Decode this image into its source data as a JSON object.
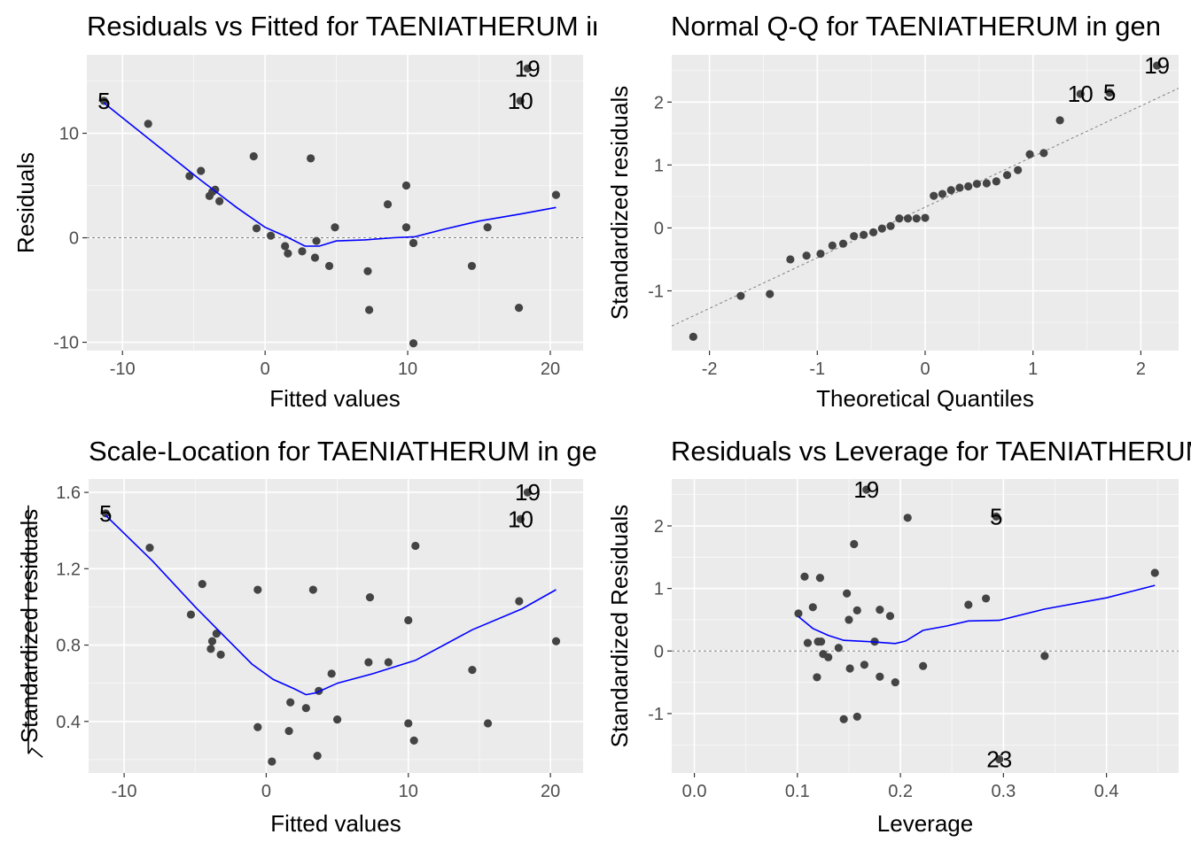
{
  "chart_data": [
    {
      "type": "scatter",
      "title": "Residuals vs Fitted for TAENIATHERUM in gen",
      "xlabel": "Fitted values",
      "ylabel": "Residuals",
      "xlim": [
        -12.5,
        22.3
      ],
      "ylim": [
        -10.8,
        17.5
      ],
      "xticks": [
        -10,
        0,
        10,
        20
      ],
      "yticks": [
        -10,
        0,
        10
      ],
      "reference_line": {
        "type": "horizontal",
        "value": 0,
        "style": "dashed"
      },
      "points": [
        {
          "x": -11.3,
          "y": 13.1
        },
        {
          "x": -8.2,
          "y": 10.9
        },
        {
          "x": -5.3,
          "y": 5.9
        },
        {
          "x": -4.5,
          "y": 6.4
        },
        {
          "x": -3.9,
          "y": 4.0
        },
        {
          "x": -3.7,
          "y": 4.4
        },
        {
          "x": -3.5,
          "y": 4.6
        },
        {
          "x": -3.2,
          "y": 3.5
        },
        {
          "x": -0.8,
          "y": 7.8
        },
        {
          "x": -0.6,
          "y": 0.9
        },
        {
          "x": 0.4,
          "y": 0.2
        },
        {
          "x": 1.4,
          "y": -0.8
        },
        {
          "x": 1.6,
          "y": -1.5
        },
        {
          "x": 2.6,
          "y": -1.3
        },
        {
          "x": 3.2,
          "y": 7.6
        },
        {
          "x": 3.5,
          "y": -1.9
        },
        {
          "x": 3.6,
          "y": -0.3
        },
        {
          "x": 4.5,
          "y": -2.7
        },
        {
          "x": 4.9,
          "y": 1.0
        },
        {
          "x": 7.2,
          "y": -3.2
        },
        {
          "x": 7.3,
          "y": -6.9
        },
        {
          "x": 8.6,
          "y": 3.2
        },
        {
          "x": 9.9,
          "y": 5.0
        },
        {
          "x": 9.9,
          "y": 1.0
        },
        {
          "x": 10.4,
          "y": -0.5
        },
        {
          "x": 10.4,
          "y": -10.1
        },
        {
          "x": 14.5,
          "y": -2.7
        },
        {
          "x": 15.6,
          "y": 1.0
        },
        {
          "x": 17.8,
          "y": -6.7
        },
        {
          "x": 17.9,
          "y": 13.1
        },
        {
          "x": 18.4,
          "y": 16.2
        },
        {
          "x": 20.4,
          "y": 4.1
        }
      ],
      "smooth": [
        {
          "x": -11.3,
          "y": 12.9
        },
        {
          "x": -8.0,
          "y": 9.3
        },
        {
          "x": -4.5,
          "y": 5.5
        },
        {
          "x": -2.0,
          "y": 2.9
        },
        {
          "x": 0.0,
          "y": 1.0
        },
        {
          "x": 1.5,
          "y": 0.1
        },
        {
          "x": 2.8,
          "y": -0.8
        },
        {
          "x": 3.8,
          "y": -0.8
        },
        {
          "x": 5.0,
          "y": -0.3
        },
        {
          "x": 7.0,
          "y": -0.2
        },
        {
          "x": 9.0,
          "y": 0.0
        },
        {
          "x": 10.5,
          "y": 0.1
        },
        {
          "x": 12.5,
          "y": 0.8
        },
        {
          "x": 15.0,
          "y": 1.6
        },
        {
          "x": 18.0,
          "y": 2.3
        },
        {
          "x": 20.4,
          "y": 2.9
        }
      ],
      "point_labels": [
        {
          "text": "5",
          "x": -11.3,
          "y": 13.1
        },
        {
          "text": "19",
          "x": 18.4,
          "y": 16.2
        },
        {
          "text": "10",
          "x": 17.9,
          "y": 13.1
        }
      ]
    },
    {
      "type": "scatter",
      "title": "Normal Q-Q for TAENIATHERUM in gen",
      "xlabel": "Theoretical Quantiles",
      "ylabel": "Standardized residuals",
      "xlim": [
        -2.35,
        2.35
      ],
      "ylim": [
        -1.95,
        2.75
      ],
      "xticks": [
        -2,
        -1,
        0,
        1,
        2
      ],
      "yticks": [
        -1,
        0,
        1,
        2
      ],
      "reference_line": {
        "type": "qq",
        "x1": -2.35,
        "y1": -1.56,
        "x2": 2.35,
        "y2": 2.22,
        "style": "dashed"
      },
      "points": [
        {
          "x": -2.15,
          "y": -1.73
        },
        {
          "x": -1.71,
          "y": -1.08
        },
        {
          "x": -1.44,
          "y": -1.05
        },
        {
          "x": -1.25,
          "y": -0.5
        },
        {
          "x": -1.1,
          "y": -0.44
        },
        {
          "x": -0.97,
          "y": -0.41
        },
        {
          "x": -0.86,
          "y": -0.28
        },
        {
          "x": -0.76,
          "y": -0.25
        },
        {
          "x": -0.66,
          "y": -0.13
        },
        {
          "x": -0.57,
          "y": -0.11
        },
        {
          "x": -0.48,
          "y": -0.07
        },
        {
          "x": -0.4,
          "y": -0.01
        },
        {
          "x": -0.32,
          "y": 0.03
        },
        {
          "x": -0.24,
          "y": 0.15
        },
        {
          "x": -0.16,
          "y": 0.15
        },
        {
          "x": -0.08,
          "y": 0.15
        },
        {
          "x": 0.0,
          "y": 0.16
        },
        {
          "x": 0.08,
          "y": 0.51
        },
        {
          "x": 0.16,
          "y": 0.54
        },
        {
          "x": 0.24,
          "y": 0.6
        },
        {
          "x": 0.32,
          "y": 0.64
        },
        {
          "x": 0.4,
          "y": 0.66
        },
        {
          "x": 0.48,
          "y": 0.7
        },
        {
          "x": 0.57,
          "y": 0.71
        },
        {
          "x": 0.66,
          "y": 0.74
        },
        {
          "x": 0.76,
          "y": 0.84
        },
        {
          "x": 0.86,
          "y": 0.92
        },
        {
          "x": 0.97,
          "y": 1.17
        },
        {
          "x": 1.1,
          "y": 1.19
        },
        {
          "x": 1.25,
          "y": 1.71
        },
        {
          "x": 1.44,
          "y": 2.13
        },
        {
          "x": 1.71,
          "y": 2.15
        },
        {
          "x": 2.15,
          "y": 2.58
        }
      ],
      "point_labels": [
        {
          "text": "19",
          "x": 2.15,
          "y": 2.58
        },
        {
          "text": "5",
          "x": 1.71,
          "y": 2.15
        },
        {
          "text": "10",
          "x": 1.44,
          "y": 2.13
        }
      ]
    },
    {
      "type": "scatter",
      "title": "Scale-Location for TAENIATHERUM in gen",
      "xlabel": "Fitted values",
      "ylabel": "Standardized residuals",
      "ylabel_prefix": "√",
      "xlim": [
        -12.5,
        22.3
      ],
      "ylim": [
        0.13,
        1.67
      ],
      "xticks": [
        -10,
        0,
        10,
        20
      ],
      "yticks": [
        0.4,
        0.8,
        1.2,
        1.6
      ],
      "ytick_labels": [
        "0.4",
        "0.8",
        "1.2",
        "1.6"
      ],
      "points": [
        {
          "x": -11.3,
          "y": 1.49
        },
        {
          "x": -8.2,
          "y": 1.31
        },
        {
          "x": -5.3,
          "y": 0.96
        },
        {
          "x": -4.5,
          "y": 1.12
        },
        {
          "x": -3.9,
          "y": 0.78
        },
        {
          "x": -3.8,
          "y": 0.82
        },
        {
          "x": -3.5,
          "y": 0.86
        },
        {
          "x": -3.2,
          "y": 0.75
        },
        {
          "x": -0.6,
          "y": 0.37
        },
        {
          "x": -0.6,
          "y": 1.09
        },
        {
          "x": 0.4,
          "y": 0.19
        },
        {
          "x": 1.6,
          "y": 0.35
        },
        {
          "x": 1.7,
          "y": 0.5
        },
        {
          "x": 2.8,
          "y": 0.47
        },
        {
          "x": 3.3,
          "y": 1.09
        },
        {
          "x": 3.6,
          "y": 0.22
        },
        {
          "x": 3.7,
          "y": 0.56
        },
        {
          "x": 4.6,
          "y": 0.65
        },
        {
          "x": 5.0,
          "y": 0.41
        },
        {
          "x": 7.2,
          "y": 0.71
        },
        {
          "x": 7.3,
          "y": 1.05
        },
        {
          "x": 8.6,
          "y": 0.71
        },
        {
          "x": 10.0,
          "y": 0.39
        },
        {
          "x": 10.0,
          "y": 0.93
        },
        {
          "x": 10.4,
          "y": 0.3
        },
        {
          "x": 10.5,
          "y": 1.32
        },
        {
          "x": 14.5,
          "y": 0.67
        },
        {
          "x": 15.6,
          "y": 0.39
        },
        {
          "x": 17.8,
          "y": 1.03
        },
        {
          "x": 17.9,
          "y": 1.46
        },
        {
          "x": 18.4,
          "y": 1.6
        },
        {
          "x": 20.4,
          "y": 0.82
        }
      ],
      "smooth": [
        {
          "x": -11.3,
          "y": 1.48
        },
        {
          "x": -8.0,
          "y": 1.24
        },
        {
          "x": -5.0,
          "y": 1.0
        },
        {
          "x": -3.0,
          "y": 0.85
        },
        {
          "x": -1.0,
          "y": 0.7
        },
        {
          "x": 0.5,
          "y": 0.62
        },
        {
          "x": 2.0,
          "y": 0.57
        },
        {
          "x": 2.8,
          "y": 0.54
        },
        {
          "x": 3.5,
          "y": 0.55
        },
        {
          "x": 5.0,
          "y": 0.6
        },
        {
          "x": 7.5,
          "y": 0.65
        },
        {
          "x": 10.5,
          "y": 0.72
        },
        {
          "x": 14.5,
          "y": 0.88
        },
        {
          "x": 18.0,
          "y": 0.99
        },
        {
          "x": 20.4,
          "y": 1.09
        }
      ],
      "point_labels": [
        {
          "text": "5",
          "x": -11.3,
          "y": 1.49
        },
        {
          "text": "19",
          "x": 18.4,
          "y": 1.6
        },
        {
          "text": "10",
          "x": 17.9,
          "y": 1.46
        }
      ]
    },
    {
      "type": "scatter",
      "title": "Residuals vs Leverage for TAENIATHERUM in gen",
      "xlabel": "Leverage",
      "ylabel": "Standardized Residuals",
      "xlim": [
        -0.022,
        0.47
      ],
      "ylim": [
        -1.95,
        2.75
      ],
      "xticks": [
        0.0,
        0.1,
        0.2,
        0.3,
        0.4
      ],
      "xtick_labels": [
        "0.0",
        "0.1",
        "0.2",
        "0.3",
        "0.4"
      ],
      "yticks": [
        -1,
        0,
        1,
        2
      ],
      "reference_line": {
        "type": "horizontal",
        "value": 0,
        "style": "dashed"
      },
      "points": [
        {
          "x": 0.101,
          "y": 0.6
        },
        {
          "x": 0.107,
          "y": 1.19
        },
        {
          "x": 0.11,
          "y": 0.13
        },
        {
          "x": 0.115,
          "y": 0.7
        },
        {
          "x": 0.119,
          "y": -0.42
        },
        {
          "x": 0.12,
          "y": 0.15
        },
        {
          "x": 0.122,
          "y": 1.17
        },
        {
          "x": 0.123,
          "y": 0.15
        },
        {
          "x": 0.125,
          "y": -0.05
        },
        {
          "x": 0.13,
          "y": -0.1
        },
        {
          "x": 0.14,
          "y": 0.05
        },
        {
          "x": 0.145,
          "y": -1.09
        },
        {
          "x": 0.148,
          "y": 0.92
        },
        {
          "x": 0.15,
          "y": 0.5
        },
        {
          "x": 0.151,
          "y": -0.28
        },
        {
          "x": 0.155,
          "y": 1.71
        },
        {
          "x": 0.158,
          "y": -1.05
        },
        {
          "x": 0.158,
          "y": 0.65
        },
        {
          "x": 0.165,
          "y": -0.22
        },
        {
          "x": 0.167,
          "y": 2.58
        },
        {
          "x": 0.175,
          "y": 0.15
        },
        {
          "x": 0.18,
          "y": -0.41
        },
        {
          "x": 0.18,
          "y": 0.66
        },
        {
          "x": 0.19,
          "y": 0.56
        },
        {
          "x": 0.195,
          "y": -0.5
        },
        {
          "x": 0.207,
          "y": 2.13
        },
        {
          "x": 0.222,
          "y": -0.24
        },
        {
          "x": 0.266,
          "y": 0.74
        },
        {
          "x": 0.283,
          "y": 0.84
        },
        {
          "x": 0.293,
          "y": 2.15
        },
        {
          "x": 0.296,
          "y": -1.73
        },
        {
          "x": 0.34,
          "y": -0.08
        },
        {
          "x": 0.447,
          "y": 1.25
        }
      ],
      "smooth": [
        {
          "x": 0.101,
          "y": 0.55
        },
        {
          "x": 0.115,
          "y": 0.36
        },
        {
          "x": 0.13,
          "y": 0.25
        },
        {
          "x": 0.145,
          "y": 0.17
        },
        {
          "x": 0.17,
          "y": 0.15
        },
        {
          "x": 0.195,
          "y": 0.12
        },
        {
          "x": 0.205,
          "y": 0.16
        },
        {
          "x": 0.222,
          "y": 0.33
        },
        {
          "x": 0.245,
          "y": 0.4
        },
        {
          "x": 0.266,
          "y": 0.48
        },
        {
          "x": 0.296,
          "y": 0.49
        },
        {
          "x": 0.34,
          "y": 0.67
        },
        {
          "x": 0.4,
          "y": 0.85
        },
        {
          "x": 0.447,
          "y": 1.05
        }
      ],
      "point_labels": [
        {
          "text": "19",
          "x": 0.167,
          "y": 2.58
        },
        {
          "text": "5",
          "x": 0.293,
          "y": 2.15
        },
        {
          "text": "23",
          "x": 0.296,
          "y": -1.73
        }
      ]
    }
  ],
  "colors": {
    "panel_background": "#ebebeb",
    "grid_major": "#ffffff",
    "point": "#444444",
    "smooth_line": "#0000ff",
    "reference_line": "#808080",
    "tick_text": "#4d4d4d",
    "axis_title": "#000000"
  }
}
